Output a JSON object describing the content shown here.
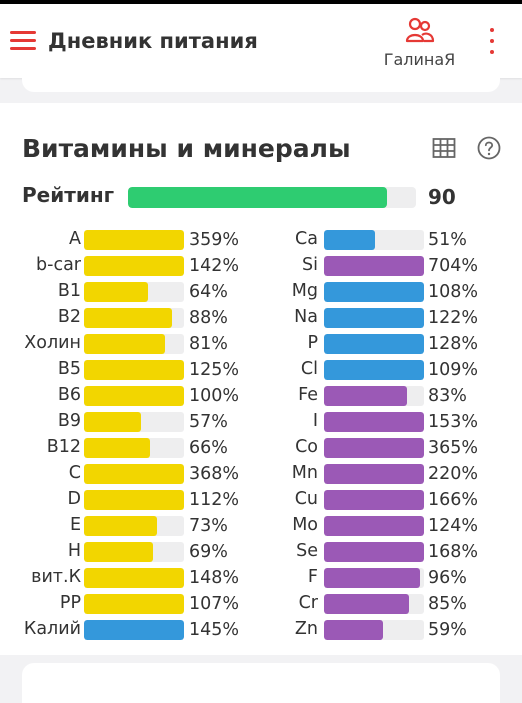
{
  "app": {
    "title": "Дневник питания",
    "user_name": "ГалинаЯ",
    "accent_color": "#e53935",
    "icons": {
      "menu": "menu-icon",
      "user": "users-icon",
      "more": "more-vertical-icon"
    }
  },
  "card": {
    "title": "Витамины и минералы",
    "table_icon": "table-icon",
    "help_icon": "help-icon",
    "rating": {
      "label": "Рейтинг",
      "value": "90",
      "fill_percent": 90,
      "color": "#2ecc71"
    }
  },
  "colors": {
    "yellow": "#f2d600",
    "blue": "#3498db",
    "purple": "#9b59b6",
    "track": "#eeeeef"
  },
  "left": [
    {
      "label": "A",
      "value": "359%",
      "pct": 359,
      "color": "yellow"
    },
    {
      "label": "b-car",
      "value": "142%",
      "pct": 142,
      "color": "yellow"
    },
    {
      "label": "B1",
      "value": "64%",
      "pct": 64,
      "color": "yellow"
    },
    {
      "label": "B2",
      "value": "88%",
      "pct": 88,
      "color": "yellow"
    },
    {
      "label": "Холин",
      "value": "81%",
      "pct": 81,
      "color": "yellow"
    },
    {
      "label": "B5",
      "value": "125%",
      "pct": 125,
      "color": "yellow"
    },
    {
      "label": "B6",
      "value": "100%",
      "pct": 100,
      "color": "yellow"
    },
    {
      "label": "B9",
      "value": "57%",
      "pct": 57,
      "color": "yellow"
    },
    {
      "label": "B12",
      "value": "66%",
      "pct": 66,
      "color": "yellow"
    },
    {
      "label": "C",
      "value": "368%",
      "pct": 368,
      "color": "yellow"
    },
    {
      "label": "D",
      "value": "112%",
      "pct": 112,
      "color": "yellow"
    },
    {
      "label": "E",
      "value": "73%",
      "pct": 73,
      "color": "yellow"
    },
    {
      "label": "H",
      "value": "69%",
      "pct": 69,
      "color": "yellow"
    },
    {
      "label": "вит.К",
      "value": "148%",
      "pct": 148,
      "color": "yellow"
    },
    {
      "label": "PP",
      "value": "107%",
      "pct": 107,
      "color": "yellow"
    },
    {
      "label": "Калий",
      "value": "145%",
      "pct": 145,
      "color": "blue"
    }
  ],
  "right": [
    {
      "label": "Ca",
      "value": "51%",
      "pct": 51,
      "color": "blue"
    },
    {
      "label": "Si",
      "value": "704%",
      "pct": 704,
      "color": "purple"
    },
    {
      "label": "Mg",
      "value": "108%",
      "pct": 108,
      "color": "blue"
    },
    {
      "label": "Na",
      "value": "122%",
      "pct": 122,
      "color": "blue"
    },
    {
      "label": "P",
      "value": "128%",
      "pct": 128,
      "color": "blue"
    },
    {
      "label": "Cl",
      "value": "109%",
      "pct": 109,
      "color": "blue"
    },
    {
      "label": "Fe",
      "value": "83%",
      "pct": 83,
      "color": "purple"
    },
    {
      "label": "I",
      "value": "153%",
      "pct": 153,
      "color": "purple"
    },
    {
      "label": "Co",
      "value": "365%",
      "pct": 365,
      "color": "purple"
    },
    {
      "label": "Mn",
      "value": "220%",
      "pct": 220,
      "color": "purple"
    },
    {
      "label": "Cu",
      "value": "166%",
      "pct": 166,
      "color": "purple"
    },
    {
      "label": "Mo",
      "value": "124%",
      "pct": 124,
      "color": "purple"
    },
    {
      "label": "Se",
      "value": "168%",
      "pct": 168,
      "color": "purple"
    },
    {
      "label": "F",
      "value": "96%",
      "pct": 96,
      "color": "purple"
    },
    {
      "label": "Cr",
      "value": "85%",
      "pct": 85,
      "color": "purple"
    },
    {
      "label": "Zn",
      "value": "59%",
      "pct": 59,
      "color": "purple"
    }
  ]
}
